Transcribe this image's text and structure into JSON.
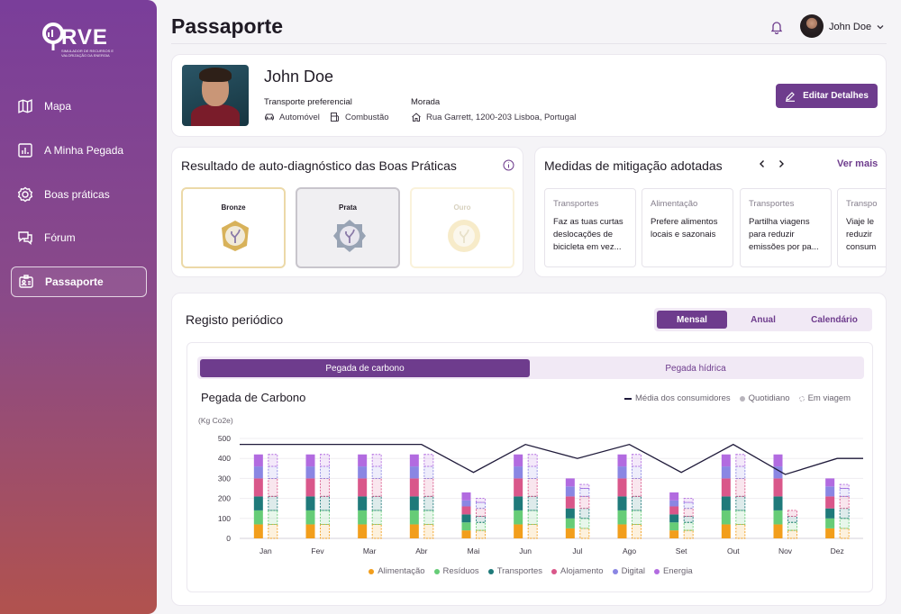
{
  "brand": {
    "logo_text": "RVE",
    "logo_sub": "SIMULADOR DE RECURSOS E VALORIZAÇÃO DA ENERGIA"
  },
  "sidebar": {
    "items": [
      {
        "label": "Mapa",
        "icon": "map-icon"
      },
      {
        "label": "A Minha Pegada",
        "icon": "chart-icon"
      },
      {
        "label": "Boas práticas",
        "icon": "badge-icon"
      },
      {
        "label": "Fórum",
        "icon": "chat-icon"
      },
      {
        "label": "Passaporte",
        "icon": "id-card-icon",
        "active": true
      }
    ]
  },
  "header": {
    "title": "Passaporte",
    "user_name": "John Doe"
  },
  "profile": {
    "name": "John Doe",
    "transport_label": "Transporte preferencial",
    "transport_vehicle": "Automóvel",
    "transport_fuel": "Combustão",
    "address_label": "Morada",
    "address": "Rua Garrett, 1200-203 Lisboa, Portugal",
    "edit_label": "Editar Detalhes"
  },
  "diagnostic": {
    "title": "Resultado de auto-diagnóstico das Boas Práticas",
    "medals": [
      {
        "label": "Bronze",
        "color": "#c9a24a",
        "border": "#ecd9a8"
      },
      {
        "label": "Prata",
        "color": "#8b97a8",
        "border": "#c8c5cc"
      },
      {
        "label": "Ouro",
        "color": "#e6c25c",
        "border": "#f5e3b0"
      }
    ]
  },
  "mitigation": {
    "title": "Medidas de mitigação adotadas",
    "see_more": "Ver mais",
    "items": [
      {
        "category": "Transportes",
        "text": "Faz as tuas curtas deslocações de bicicleta em vez..."
      },
      {
        "category": "Alimentação",
        "text": "Prefere alimentos locais e sazonais"
      },
      {
        "category": "Transportes",
        "text": "Partilha viagens para reduzir emissões por pa..."
      },
      {
        "category": "Transpo",
        "text": "Viaje le reduzir consum"
      }
    ]
  },
  "registry": {
    "title": "Registo periódico",
    "periods": [
      "Mensal",
      "Anual",
      "Calendário"
    ],
    "tabs": [
      "Pegada de carbono",
      "Pegada hídrica"
    ]
  },
  "chart_data": {
    "type": "bar",
    "title": "Pegada de Carbono",
    "ylabel": "(Kg Co2e)",
    "ylim": [
      0,
      500
    ],
    "yticks": [
      "0",
      "100",
      "200",
      "300",
      "400",
      "500"
    ],
    "categories": [
      "Jan",
      "Fev",
      "Mar",
      "Abr",
      "Mai",
      "Jun",
      "Jul",
      "Ago",
      "Set",
      "Out",
      "Nov",
      "Dez"
    ],
    "line_legend": [
      "Média dos consumidores",
      "Quotidiano",
      "Em viagem"
    ],
    "average_line": [
      470,
      470,
      470,
      470,
      330,
      470,
      400,
      470,
      330,
      470,
      320,
      400
    ],
    "series": [
      {
        "name": "Alimentação",
        "color": "#f29e1c",
        "quotidiano": [
          70,
          70,
          70,
          70,
          40,
          70,
          50,
          70,
          40,
          70,
          70,
          50
        ],
        "viagem": [
          70,
          70,
          70,
          70,
          40,
          70,
          50,
          70,
          40,
          70,
          40,
          50
        ]
      },
      {
        "name": "Resíduos",
        "color": "#66cc77",
        "quotidiano": [
          70,
          70,
          70,
          70,
          40,
          70,
          50,
          70,
          40,
          70,
          70,
          50
        ],
        "viagem": [
          70,
          70,
          70,
          70,
          40,
          70,
          50,
          70,
          40,
          70,
          40,
          50
        ]
      },
      {
        "name": "Transportes",
        "color": "#1f7a7a",
        "quotidiano": [
          70,
          70,
          70,
          70,
          40,
          70,
          50,
          70,
          40,
          70,
          70,
          50
        ],
        "viagem": [
          70,
          70,
          70,
          70,
          30,
          70,
          50,
          70,
          30,
          70,
          30,
          50
        ]
      },
      {
        "name": "Alojamento",
        "color": "#d9578a",
        "quotidiano": [
          90,
          90,
          90,
          90,
          40,
          90,
          60,
          90,
          40,
          90,
          90,
          60
        ],
        "viagem": [
          90,
          90,
          90,
          90,
          40,
          90,
          60,
          90,
          40,
          90,
          30,
          60
        ]
      },
      {
        "name": "Digital",
        "color": "#8a86e3",
        "quotidiano": [
          60,
          60,
          60,
          60,
          30,
          60,
          50,
          60,
          30,
          60,
          60,
          50
        ],
        "viagem": [
          60,
          60,
          60,
          60,
          30,
          60,
          40,
          60,
          30,
          60,
          0,
          40
        ]
      },
      {
        "name": "Energia",
        "color": "#b26be0",
        "quotidiano": [
          60,
          60,
          60,
          60,
          40,
          60,
          40,
          60,
          40,
          60,
          60,
          40
        ],
        "viagem": [
          60,
          60,
          60,
          60,
          20,
          60,
          20,
          60,
          20,
          60,
          0,
          20
        ]
      }
    ]
  }
}
